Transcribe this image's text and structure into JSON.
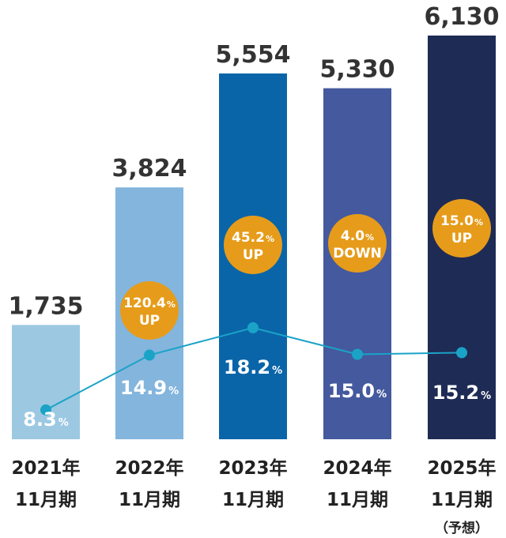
{
  "chart_data": {
    "type": "bar",
    "categories": [
      {
        "year": "2021年",
        "period": "11月期",
        "note": ""
      },
      {
        "year": "2022年",
        "period": "11月期",
        "note": ""
      },
      {
        "year": "2023年",
        "period": "11月期",
        "note": ""
      },
      {
        "year": "2024年",
        "period": "11月期",
        "note": ""
      },
      {
        "year": "2025年",
        "period": "11月期",
        "note": "（予想）"
      }
    ],
    "bars": {
      "values": [
        1735,
        3824,
        5554,
        5330,
        6130
      ],
      "labels": [
        "1,735",
        "3,824",
        "5,554",
        "5,330",
        "6,130"
      ],
      "colors": [
        "#9cc8e2",
        "#83b5dd",
        "#0a65a8",
        "#44599e",
        "#1e2b55"
      ]
    },
    "line": {
      "values": [
        8.3,
        14.9,
        18.2,
        15.0,
        15.2
      ],
      "labels": [
        "8.3",
        "14.9",
        "18.2",
        "15.0",
        "15.2"
      ],
      "unit": "%",
      "color": "#1aa3c7"
    },
    "growth_badges": [
      null,
      {
        "value": "120.4",
        "unit": "%",
        "direction": "UP"
      },
      {
        "value": "45.2",
        "unit": "%",
        "direction": "UP"
      },
      {
        "value": "4.0",
        "unit": "%",
        "direction": "DOWN"
      },
      {
        "value": "15.0",
        "unit": "%",
        "direction": "UP"
      }
    ],
    "badge_color": "#e69c1a",
    "ylim_bars": [
      0,
      6130
    ],
    "ylim_line": [
      0,
      30
    ],
    "grid": false
  }
}
